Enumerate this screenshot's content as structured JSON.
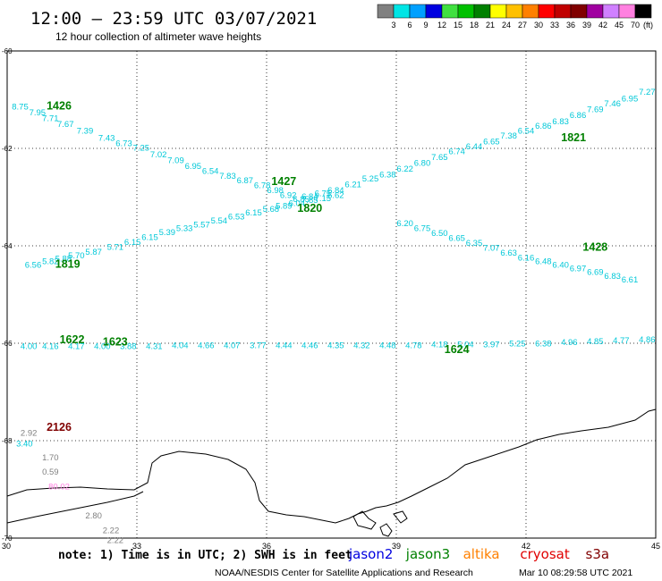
{
  "header": {
    "title": "12:00 – 23:59 UTC 03/07/2021",
    "subtitle": "12 hour collection of altimeter wave heights"
  },
  "colorbar": {
    "swatches": [
      "#808080",
      "#00e5e5",
      "#00a0ff",
      "#0000e0",
      "#40e040",
      "#00c000",
      "#008000",
      "#ffff00",
      "#ffc000",
      "#ff8000",
      "#ff0000",
      "#c00000",
      "#800000",
      "#a000a0",
      "#d080ff",
      "#ff80e0",
      "#000000"
    ],
    "labels": [
      "3",
      "6",
      "9",
      "12",
      "15",
      "18",
      "21",
      "24",
      "27",
      "30",
      "33",
      "36",
      "39",
      "42",
      "45",
      "70"
    ],
    "unit": "(ft)"
  },
  "axes": {
    "x_ticks": [
      30,
      33,
      36,
      39,
      42,
      45
    ],
    "y_ticks": [
      -60,
      -62,
      -64,
      -66,
      -68,
      -70
    ],
    "lon_range": [
      30,
      45
    ],
    "lat_range": [
      -70,
      -60
    ]
  },
  "footer": {
    "note": "note: 1) Time is in UTC; 2) SWH is in feet",
    "agency": "NOAA/NESDIS Center for Satellite Applications and Research",
    "timestamp": "Mar 10 08:29:58 UTC 2021"
  },
  "legend": [
    {
      "label": "jason2",
      "color": "#0000e0"
    },
    {
      "label": "jason3",
      "color": "#008000"
    },
    {
      "label": "altika",
      "color": "#ff8000"
    },
    {
      "label": "cryosat",
      "color": "#e00000"
    },
    {
      "label": "s3a",
      "color": "#800000"
    }
  ],
  "chart_data": {
    "type": "scatter",
    "tracks": [
      {
        "color": "#00c8d8",
        "lon": [
          30.3,
          30.7,
          31.0,
          31.35,
          31.8,
          32.3,
          32.7,
          33.1,
          33.5,
          33.9,
          34.3,
          34.7,
          35.1,
          35.5,
          35.9,
          36.2,
          36.5,
          36.8
        ],
        "lat": [
          -61.2,
          -61.32,
          -61.44,
          -61.56,
          -61.7,
          -61.84,
          -61.95,
          -62.05,
          -62.18,
          -62.3,
          -62.42,
          -62.52,
          -62.62,
          -62.72,
          -62.82,
          -62.92,
          -63.02,
          -63.1
        ],
        "values": [
          "8.75",
          "7.95",
          "7.71",
          "7.67",
          "7.39",
          "7.43",
          "6.73",
          "7.25",
          "7.02",
          "7.09",
          "6.95",
          "6.54",
          "7.83",
          "6.87",
          "6.78",
          "6.98",
          "6.92",
          "6.85"
        ]
      },
      {
        "color": "#00c8d8",
        "lon": [
          37.0,
          37.3,
          37.6,
          38.0,
          38.4,
          38.8,
          39.2,
          39.6,
          40.0,
          40.4,
          40.8,
          41.2,
          41.6,
          42.0,
          42.4,
          42.8,
          43.2,
          43.6,
          44.0,
          44.4,
          44.8
        ],
        "lat": [
          -63.05,
          -62.98,
          -62.92,
          -62.8,
          -62.68,
          -62.6,
          -62.48,
          -62.36,
          -62.24,
          -62.12,
          -62.02,
          -61.92,
          -61.8,
          -61.7,
          -61.6,
          -61.5,
          -61.38,
          -61.26,
          -61.14,
          -61.04,
          -60.9
        ],
        "values": [
          "6.84",
          "6.75",
          "6.84",
          "6.21",
          "5.25",
          "6.38",
          "6.22",
          "6.80",
          "7.65",
          "6.74",
          "6.44",
          "6.65",
          "7.38",
          "6.54",
          "6.86",
          "6.83",
          "6.86",
          "7.69",
          "7.46",
          "6.95",
          "7.27"
        ]
      },
      {
        "color": "#00c8d8",
        "lon": [
          30.6,
          31.0,
          31.3,
          31.6,
          32.0,
          32.5,
          32.9,
          33.3,
          33.7,
          34.1,
          34.5,
          34.9,
          35.3,
          35.7,
          36.1,
          36.4,
          36.7,
          37.0,
          37.3,
          37.6
        ],
        "lat": [
          -64.45,
          -64.38,
          -64.32,
          -64.26,
          -64.18,
          -64.08,
          -63.98,
          -63.88,
          -63.78,
          -63.7,
          -63.62,
          -63.54,
          -63.46,
          -63.38,
          -63.3,
          -63.24,
          -63.18,
          -63.12,
          -63.08,
          -63.02
        ],
        "values": [
          "6.56",
          "5.82",
          "5.88",
          "5.70",
          "5.87",
          "5.71",
          "6.15",
          "6.15",
          "5.39",
          "5.33",
          "5.57",
          "5.54",
          "6.53",
          "6.15",
          "5.68",
          "5.89",
          "6.04",
          "7.85",
          "7.15",
          "6.62"
        ]
      },
      {
        "color": "#00c8d8",
        "lon": [
          39.2,
          39.6,
          40.0,
          40.4,
          40.8,
          41.2,
          41.6,
          42.0,
          42.4,
          42.8,
          43.2,
          43.6,
          44.0,
          44.4
        ],
        "lat": [
          -63.6,
          -63.7,
          -63.8,
          -63.9,
          -64.0,
          -64.1,
          -64.2,
          -64.3,
          -64.38,
          -64.45,
          -64.52,
          -64.6,
          -64.68,
          -64.75
        ],
        "values": [
          "6.20",
          "6.75",
          "6.50",
          "6.65",
          "6.35",
          "7.07",
          "6.63",
          "6.16",
          "6.48",
          "6.40",
          "6.97",
          "6.69",
          "6.83",
          "6.61"
        ]
      },
      {
        "color": "#00c8d8",
        "lon": [
          30.5,
          31.0,
          31.6,
          32.2,
          32.8,
          33.4,
          34.0,
          34.6,
          35.2,
          35.8,
          36.4,
          37.0,
          37.6,
          38.2,
          38.8,
          39.4,
          40.0,
          40.6,
          41.2,
          41.8,
          42.4,
          43.0,
          43.6,
          44.2,
          44.8
        ],
        "lat": [
          -66.12,
          -66.12,
          -66.12,
          -66.12,
          -66.12,
          -66.12,
          -66.1,
          -66.1,
          -66.1,
          -66.1,
          -66.1,
          -66.1,
          -66.1,
          -66.1,
          -66.1,
          -66.1,
          -66.08,
          -66.08,
          -66.08,
          -66.06,
          -66.06,
          -66.04,
          -66.02,
          -66.0,
          -65.98
        ],
        "values": [
          "4.00",
          "4.16",
          "4.17",
          "4.00",
          "3.88",
          "4.31",
          "4.04",
          "4.66",
          "4.07",
          "3.77",
          "4.44",
          "4.46",
          "4.35",
          "4.32",
          "4.48",
          "4.78",
          "4.18",
          "5.04",
          "3.97",
          "5.25",
          "6.38",
          "4.96",
          "4.85",
          "4.77",
          "4.86"
        ]
      },
      {
        "color": "#00c8d8",
        "lon": [
          30.4
        ],
        "lat": [
          -68.12
        ],
        "values": [
          "3.40"
        ]
      },
      {
        "color": "#808080",
        "lon": [
          30.5,
          31.0,
          31.0,
          32.0,
          32.4,
          32.5
        ],
        "lat": [
          -67.9,
          -68.4,
          -68.7,
          -69.6,
          -69.9,
          -70.1
        ],
        "values": [
          "2.92",
          "1.70",
          "0.59",
          "2.80",
          "2.22",
          "2.22"
        ]
      },
      {
        "color": "#ff80e0",
        "lon": [
          31.2
        ],
        "lat": [
          -69.0
        ],
        "values": [
          "80.02"
        ]
      }
    ],
    "track_labels": [
      {
        "text": "1426",
        "lon": 31.2,
        "lat": -61.2,
        "color": "#008000"
      },
      {
        "text": "1427",
        "lon": 36.4,
        "lat": -62.75,
        "color": "#008000"
      },
      {
        "text": "1820",
        "lon": 37.0,
        "lat": -63.3,
        "color": "#008000"
      },
      {
        "text": "1821",
        "lon": 43.1,
        "lat": -61.85,
        "color": "#008000"
      },
      {
        "text": "1819",
        "lon": 31.4,
        "lat": -64.45,
        "color": "#008000"
      },
      {
        "text": "1428",
        "lon": 43.6,
        "lat": -64.1,
        "color": "#008000"
      },
      {
        "text": "1622",
        "lon": 31.5,
        "lat": -66.0,
        "color": "#008000"
      },
      {
        "text": "1623",
        "lon": 32.5,
        "lat": -66.05,
        "color": "#008000"
      },
      {
        "text": "1624",
        "lon": 40.4,
        "lat": -66.2,
        "color": "#008000"
      },
      {
        "text": "2126",
        "lon": 31.2,
        "lat": -67.8,
        "color": "#800000"
      }
    ]
  }
}
